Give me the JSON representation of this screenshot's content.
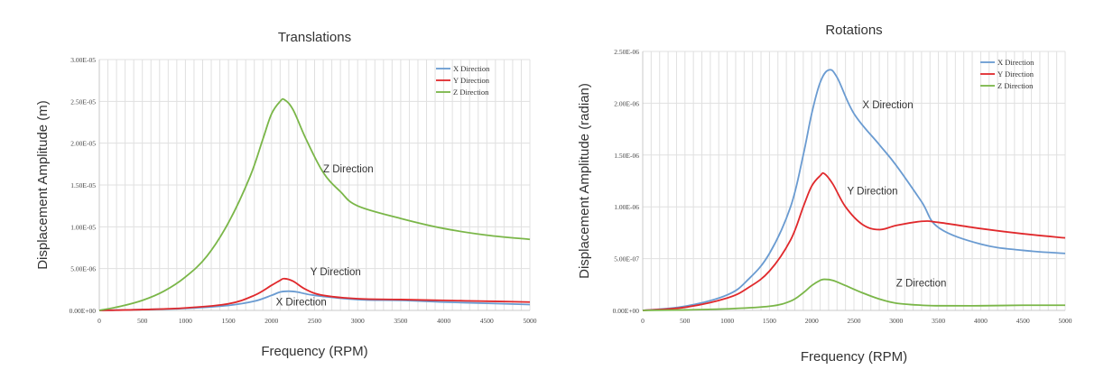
{
  "charts": [
    {
      "type": "line",
      "title": "Translations",
      "xlabel": "Frequency (RPM)",
      "ylabel": "Displacement Amplitude (m)",
      "xlim": [
        0,
        5000
      ],
      "ylim": [
        0,
        3e-05
      ],
      "x_ticks": [
        0,
        500,
        1000,
        1500,
        2000,
        2500,
        3000,
        3500,
        4000,
        4500,
        5000
      ],
      "y_ticks": [
        "0.00E+00",
        "5.00E-06",
        "1.00E-05",
        "1.50E-05",
        "2.00E-05",
        "2.50E-05",
        "3.00E-05"
      ],
      "y_tick_values": [
        0,
        5e-06,
        1e-05,
        1.5e-05,
        2e-05,
        2.5e-05,
        3e-05
      ],
      "grid": true,
      "legend_position": "top-right",
      "series": [
        {
          "name": "X Direction",
          "color": "#6a9bd1",
          "x": [
            0,
            500,
            1000,
            1500,
            1800,
            2000,
            2100,
            2200,
            2300,
            2500,
            3000,
            3500,
            4000,
            4500,
            5000
          ],
          "y": [
            0,
            1e-07,
            2.5e-07,
            6e-07,
            1.1e-06,
            1.8e-06,
            2.2e-06,
            2.3e-06,
            2.2e-06,
            1.8e-06,
            1.3e-06,
            1.2e-06,
            1e-06,
            8.5e-07,
            7e-07
          ]
        },
        {
          "name": "Y Direction",
          "color": "#e0292c",
          "x": [
            0,
            500,
            1000,
            1500,
            1800,
            2000,
            2100,
            2150,
            2250,
            2400,
            2600,
            3000,
            3500,
            4000,
            4500,
            5000
          ],
          "y": [
            0,
            1e-07,
            3e-07,
            8e-07,
            1.8e-06,
            3e-06,
            3.6e-06,
            3.8e-06,
            3.5e-06,
            2.5e-06,
            1.8e-06,
            1.4e-06,
            1.3e-06,
            1.2e-06,
            1.1e-06,
            1e-06
          ]
        },
        {
          "name": "Z Direction",
          "color": "#7ab648",
          "x": [
            0,
            250,
            500,
            750,
            1000,
            1250,
            1500,
            1750,
            1900,
            2000,
            2100,
            2150,
            2250,
            2400,
            2600,
            2800,
            3000,
            3500,
            4000,
            4500,
            5000
          ],
          "y": [
            0,
            5e-07,
            1.2e-06,
            2.3e-06,
            4e-06,
            6.5e-06,
            1.05e-05,
            1.6e-05,
            2.05e-05,
            2.35e-05,
            2.5e-05,
            2.52e-05,
            2.4e-05,
            2.05e-05,
            1.65e-05,
            1.42e-05,
            1.25e-05,
            1.1e-05,
            9.8e-06,
            9e-06,
            8.5e-06
          ]
        }
      ],
      "annotations": [
        {
          "text": "Z Direction",
          "x": 2600,
          "y": 1.65e-05
        },
        {
          "text": "Y Direction",
          "x": 2450,
          "y": 4.2e-06
        },
        {
          "text": "X Direction",
          "x": 2050,
          "y": 6e-07
        }
      ]
    },
    {
      "type": "line",
      "title": "Rotations",
      "xlabel": "Frequency (RPM)",
      "ylabel": "Displacement Amplitude (radian)",
      "xlim": [
        0,
        5000
      ],
      "ylim": [
        0,
        2.5e-06
      ],
      "x_ticks": [
        0,
        500,
        1000,
        1500,
        2000,
        2500,
        3000,
        3500,
        4000,
        4500,
        5000
      ],
      "y_ticks": [
        "0.00E+00",
        "5.00E-07",
        "1.00E-06",
        "1.50E-06",
        "2.00E-06",
        "2.50E-06"
      ],
      "y_tick_values": [
        0,
        5e-07,
        1e-06,
        1.5e-06,
        2e-06,
        2.5e-06
      ],
      "grid": true,
      "legend_position": "top-right",
      "series": [
        {
          "name": "X Direction",
          "color": "#6a9bd1",
          "x": [
            0,
            500,
            1000,
            1250,
            1500,
            1750,
            1900,
            2000,
            2100,
            2200,
            2300,
            2500,
            2800,
            3000,
            3300,
            3500,
            4000,
            4500,
            5000
          ],
          "y": [
            0,
            4e-08,
            1.5e-07,
            3e-07,
            5.5e-07,
            1e-06,
            1.5e-06,
            1.9e-06,
            2.2e-06,
            2.32e-06,
            2.25e-06,
            1.9e-06,
            1.6e-06,
            1.4e-06,
            1.05e-06,
            8e-07,
            6.4e-07,
            5.8e-07,
            5.5e-07
          ]
        },
        {
          "name": "Y Direction",
          "color": "#e0292c",
          "x": [
            0,
            500,
            1000,
            1250,
            1500,
            1750,
            1900,
            2000,
            2100,
            2150,
            2250,
            2400,
            2600,
            2800,
            3000,
            3300,
            3500,
            4000,
            4500,
            5000
          ],
          "y": [
            0,
            3e-08,
            1.2e-07,
            2.2e-07,
            3.8e-07,
            6.8e-07,
            1e-06,
            1.2e-06,
            1.3e-06,
            1.32e-06,
            1.22e-06,
            1e-06,
            8.3e-07,
            7.8e-07,
            8.2e-07,
            8.6e-07,
            8.5e-07,
            7.9e-07,
            7.4e-07,
            7e-07
          ]
        },
        {
          "name": "Z Direction",
          "color": "#7ab648",
          "x": [
            0,
            500,
            1000,
            1500,
            1750,
            1900,
            2000,
            2100,
            2150,
            2250,
            2400,
            2600,
            2800,
            3000,
            3300,
            3500,
            4000,
            4500,
            5000
          ],
          "y": [
            0,
            5e-09,
            1.5e-08,
            4e-08,
            9e-08,
            1.7e-07,
            2.4e-07,
            2.9e-07,
            3e-07,
            2.9e-07,
            2.4e-07,
            1.7e-07,
            1.1e-07,
            7e-08,
            5e-08,
            4.5e-08,
            4.5e-08,
            5e-08,
            5e-08
          ]
        }
      ],
      "annotations": [
        {
          "text": "X Direction",
          "x": 2600,
          "y": 1.95e-06
        },
        {
          "text": "Y Direction",
          "x": 2420,
          "y": 1.12e-06
        },
        {
          "text": "Z Direction",
          "x": 3000,
          "y": 2.3e-07
        }
      ]
    }
  ]
}
